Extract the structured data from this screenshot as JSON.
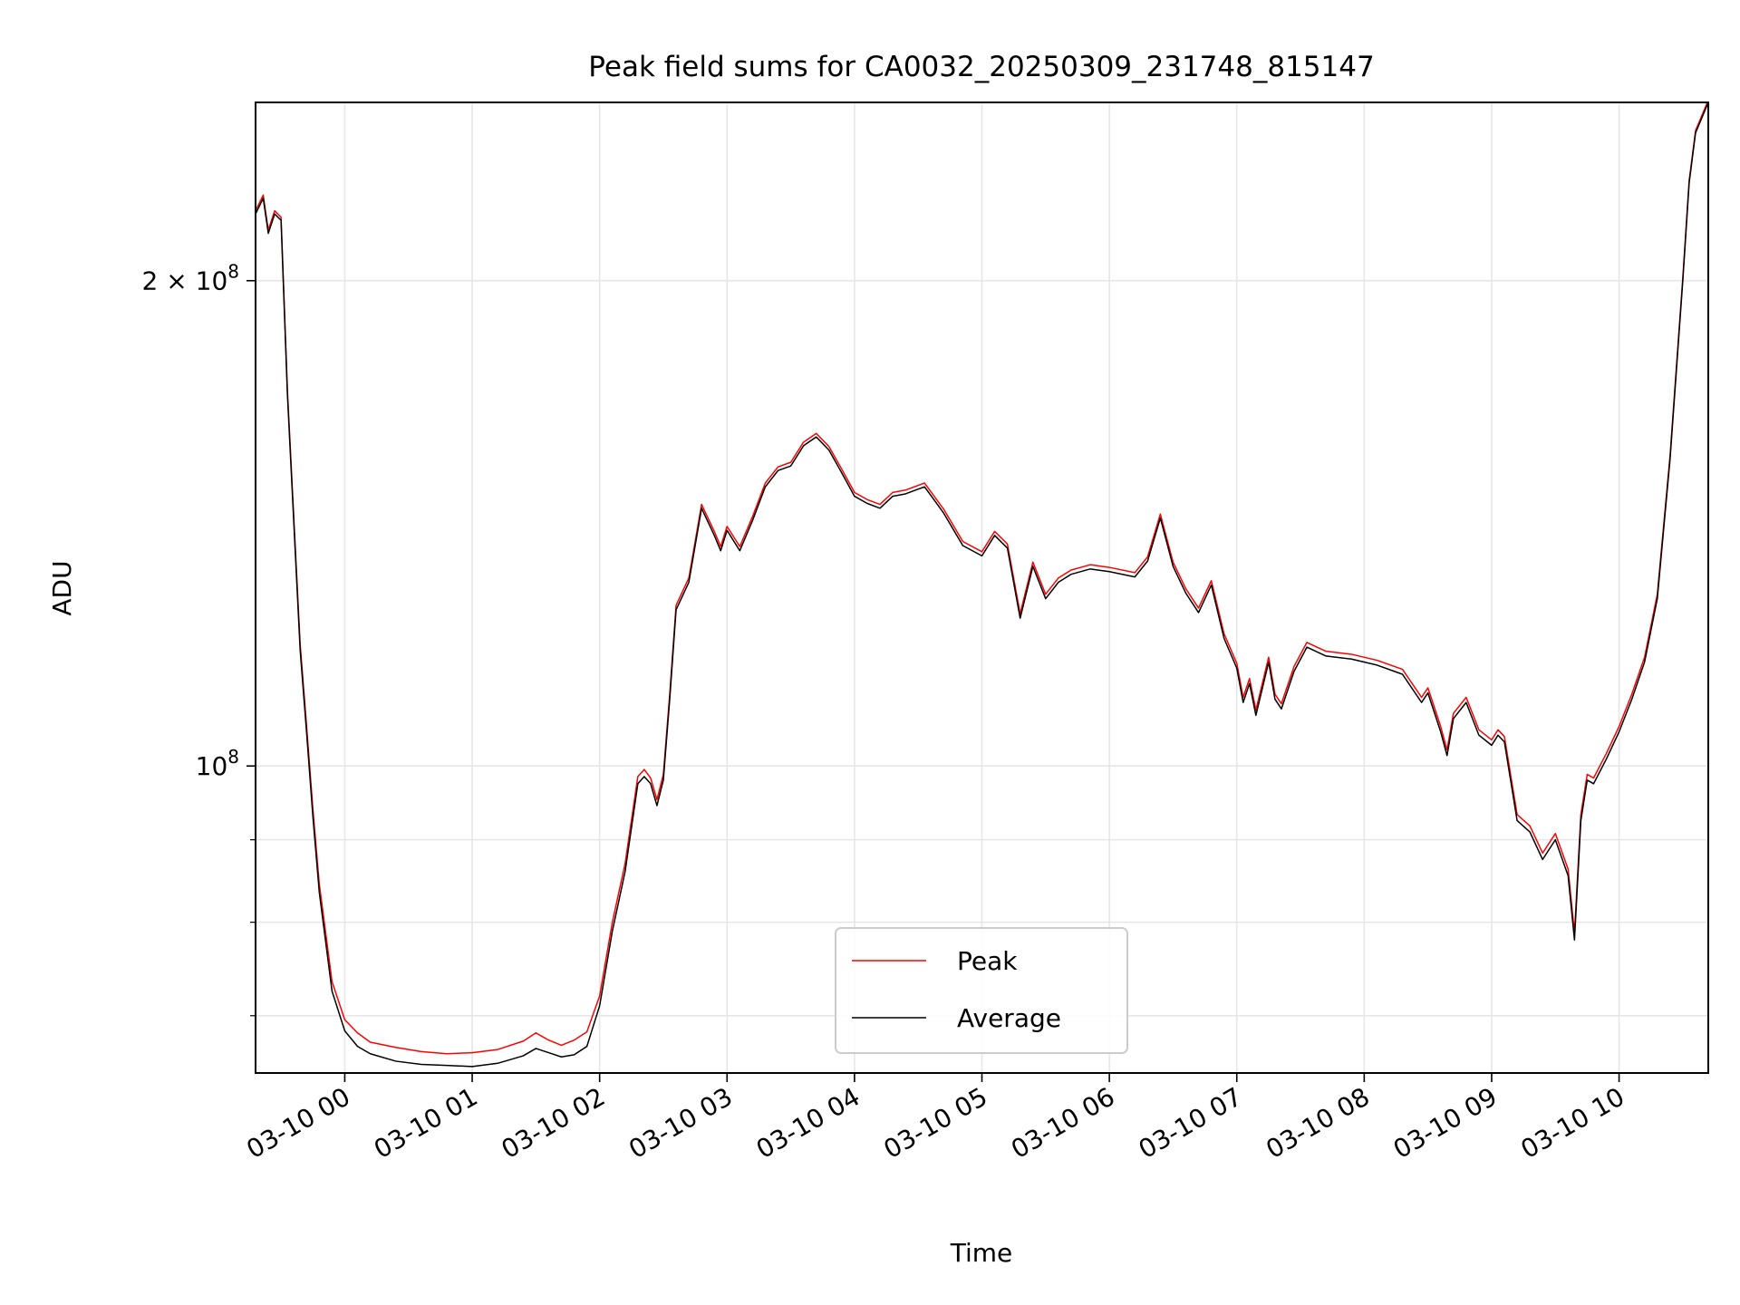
{
  "chart_data": {
    "type": "line",
    "title": "Peak field sums for CA0032_20250309_231748_815147",
    "xlabel": "Time",
    "ylabel": "ADU",
    "y_scale": "log",
    "grid": true,
    "legend_position": "lower center",
    "x_unit": "hours after 2025-03-10 00:00",
    "xlim": [
      -0.7,
      10.7
    ],
    "ylim": [
      64500000,
      258000000
    ],
    "x_ticks": [
      {
        "value": 0,
        "label": "03-10 00"
      },
      {
        "value": 1,
        "label": "03-10 01"
      },
      {
        "value": 2,
        "label": "03-10 02"
      },
      {
        "value": 3,
        "label": "03-10 03"
      },
      {
        "value": 4,
        "label": "03-10 04"
      },
      {
        "value": 5,
        "label": "03-10 05"
      },
      {
        "value": 6,
        "label": "03-10 06"
      },
      {
        "value": 7,
        "label": "03-10 07"
      },
      {
        "value": 8,
        "label": "03-10 08"
      },
      {
        "value": 9,
        "label": "03-10 09"
      },
      {
        "value": 10,
        "label": "03-10 10"
      }
    ],
    "y_ticks": [
      {
        "value": 200000000,
        "label": "2 × 10⁸",
        "mantissa": "2 × 10",
        "exp": "8"
      },
      {
        "value": 100000000,
        "label": "10⁸",
        "mantissa": "10",
        "exp": "8"
      }
    ],
    "y_minor_ticks": [
      70000000,
      80000000,
      90000000
    ],
    "series": [
      {
        "name": "Average",
        "color": "#000000",
        "points": [
          [
            -0.7,
            220000000
          ],
          [
            -0.64,
            225000000
          ],
          [
            -0.6,
            214000000
          ],
          [
            -0.55,
            220000000
          ],
          [
            -0.5,
            218000000
          ],
          [
            -0.45,
            170000000
          ],
          [
            -0.35,
            118000000
          ],
          [
            -0.3,
            105000000
          ],
          [
            -0.25,
            93000000
          ],
          [
            -0.2,
            83500000
          ],
          [
            -0.1,
            72500000
          ],
          [
            0.0,
            68500000
          ],
          [
            0.1,
            67000000
          ],
          [
            0.2,
            66300000
          ],
          [
            0.4,
            65600000
          ],
          [
            0.6,
            65300000
          ],
          [
            0.8,
            65200000
          ],
          [
            1.0,
            65100000
          ],
          [
            1.2,
            65400000
          ],
          [
            1.4,
            66100000
          ],
          [
            1.5,
            66800000
          ],
          [
            1.6,
            66400000
          ],
          [
            1.7,
            66000000
          ],
          [
            1.8,
            66200000
          ],
          [
            1.9,
            67000000
          ],
          [
            2.0,
            71000000
          ],
          [
            2.1,
            79000000
          ],
          [
            2.2,
            86000000
          ],
          [
            2.3,
            97500000
          ],
          [
            2.35,
            98500000
          ],
          [
            2.4,
            97500000
          ],
          [
            2.45,
            94500000
          ],
          [
            2.5,
            98000000
          ],
          [
            2.55,
            110000000
          ],
          [
            2.6,
            125000000
          ],
          [
            2.7,
            130000000
          ],
          [
            2.8,
            144500000
          ],
          [
            2.9,
            139000000
          ],
          [
            2.95,
            136000000
          ],
          [
            3.0,
            140000000
          ],
          [
            3.1,
            136000000
          ],
          [
            3.2,
            142000000
          ],
          [
            3.3,
            149000000
          ],
          [
            3.4,
            152500000
          ],
          [
            3.5,
            153500000
          ],
          [
            3.6,
            158000000
          ],
          [
            3.7,
            160000000
          ],
          [
            3.8,
            157000000
          ],
          [
            3.9,
            152000000
          ],
          [
            4.0,
            147000000
          ],
          [
            4.1,
            145500000
          ],
          [
            4.2,
            144500000
          ],
          [
            4.3,
            147000000
          ],
          [
            4.4,
            147500000
          ],
          [
            4.55,
            149000000
          ],
          [
            4.7,
            143500000
          ],
          [
            4.85,
            137000000
          ],
          [
            5.0,
            135000000
          ],
          [
            5.1,
            139000000
          ],
          [
            5.2,
            136500000
          ],
          [
            5.3,
            123500000
          ],
          [
            5.4,
            133000000
          ],
          [
            5.5,
            127000000
          ],
          [
            5.6,
            130000000
          ],
          [
            5.7,
            131500000
          ],
          [
            5.85,
            132500000
          ],
          [
            6.0,
            132000000
          ],
          [
            6.2,
            131000000
          ],
          [
            6.3,
            134000000
          ],
          [
            6.4,
            142500000
          ],
          [
            6.5,
            133000000
          ],
          [
            6.6,
            128000000
          ],
          [
            6.7,
            124500000
          ],
          [
            6.8,
            129500000
          ],
          [
            6.9,
            120000000
          ],
          [
            7.0,
            115000000
          ],
          [
            7.05,
            109500000
          ],
          [
            7.1,
            112500000
          ],
          [
            7.15,
            107500000
          ],
          [
            7.25,
            116000000
          ],
          [
            7.3,
            110000000
          ],
          [
            7.35,
            108500000
          ],
          [
            7.45,
            114500000
          ],
          [
            7.55,
            118500000
          ],
          [
            7.7,
            117000000
          ],
          [
            7.9,
            116500000
          ],
          [
            8.1,
            115500000
          ],
          [
            8.3,
            114000000
          ],
          [
            8.45,
            109500000
          ],
          [
            8.5,
            111000000
          ],
          [
            8.6,
            105000000
          ],
          [
            8.65,
            101500000
          ],
          [
            8.7,
            107000000
          ],
          [
            8.8,
            109500000
          ],
          [
            8.9,
            104500000
          ],
          [
            9.0,
            103000000
          ],
          [
            9.05,
            104500000
          ],
          [
            9.1,
            103500000
          ],
          [
            9.2,
            92500000
          ],
          [
            9.3,
            91000000
          ],
          [
            9.4,
            87500000
          ],
          [
            9.5,
            90000000
          ],
          [
            9.6,
            85500000
          ],
          [
            9.65,
            78000000
          ],
          [
            9.7,
            92500000
          ],
          [
            9.75,
            98000000
          ],
          [
            9.8,
            97500000
          ],
          [
            9.9,
            101000000
          ],
          [
            10.0,
            105000000
          ],
          [
            10.1,
            110000000
          ],
          [
            10.2,
            116000000
          ],
          [
            10.3,
            127000000
          ],
          [
            10.4,
            155000000
          ],
          [
            10.5,
            200000000
          ],
          [
            10.55,
            230000000
          ],
          [
            10.6,
            247000000
          ],
          [
            10.7,
            258000000
          ]
        ]
      },
      {
        "name": "Peak",
        "color": "#ff0000",
        "points": [
          [
            -0.7,
            221000000
          ],
          [
            -0.64,
            226000000
          ],
          [
            -0.6,
            215000000
          ],
          [
            -0.55,
            221000000
          ],
          [
            -0.5,
            219000000
          ],
          [
            -0.45,
            171000000
          ],
          [
            -0.35,
            119000000
          ],
          [
            -0.3,
            106000000
          ],
          [
            -0.25,
            94000000
          ],
          [
            -0.2,
            84500000
          ],
          [
            -0.1,
            73500000
          ],
          [
            0.0,
            69600000
          ],
          [
            0.1,
            68300000
          ],
          [
            0.2,
            67400000
          ],
          [
            0.4,
            66900000
          ],
          [
            0.6,
            66500000
          ],
          [
            0.8,
            66300000
          ],
          [
            1.0,
            66400000
          ],
          [
            1.2,
            66700000
          ],
          [
            1.4,
            67500000
          ],
          [
            1.5,
            68300000
          ],
          [
            1.6,
            67600000
          ],
          [
            1.7,
            67100000
          ],
          [
            1.8,
            67600000
          ],
          [
            1.9,
            68400000
          ],
          [
            2.0,
            72000000
          ],
          [
            2.1,
            80000000
          ],
          [
            2.2,
            87000000
          ],
          [
            2.3,
            98500000
          ],
          [
            2.35,
            99500000
          ],
          [
            2.4,
            98300000
          ],
          [
            2.45,
            95300000
          ],
          [
            2.5,
            98800000
          ],
          [
            2.55,
            110800000
          ],
          [
            2.6,
            125800000
          ],
          [
            2.7,
            130800000
          ],
          [
            2.8,
            145300000
          ],
          [
            2.9,
            139800000
          ],
          [
            2.95,
            136800000
          ],
          [
            3.0,
            140800000
          ],
          [
            3.1,
            136800000
          ],
          [
            3.2,
            142800000
          ],
          [
            3.3,
            149800000
          ],
          [
            3.4,
            153300000
          ],
          [
            3.5,
            154300000
          ],
          [
            3.6,
            158800000
          ],
          [
            3.7,
            160800000
          ],
          [
            3.8,
            157800000
          ],
          [
            3.9,
            152800000
          ],
          [
            4.0,
            147800000
          ],
          [
            4.1,
            146300000
          ],
          [
            4.2,
            145300000
          ],
          [
            4.3,
            147800000
          ],
          [
            4.4,
            148300000
          ],
          [
            4.55,
            149800000
          ],
          [
            4.7,
            144300000
          ],
          [
            4.85,
            137800000
          ],
          [
            5.0,
            135800000
          ],
          [
            5.1,
            139800000
          ],
          [
            5.2,
            137300000
          ],
          [
            5.3,
            124300000
          ],
          [
            5.4,
            133800000
          ],
          [
            5.5,
            127800000
          ],
          [
            5.6,
            130800000
          ],
          [
            5.7,
            132300000
          ],
          [
            5.85,
            133300000
          ],
          [
            6.0,
            132800000
          ],
          [
            6.2,
            131800000
          ],
          [
            6.3,
            134800000
          ],
          [
            6.4,
            143300000
          ],
          [
            6.5,
            133800000
          ],
          [
            6.6,
            128800000
          ],
          [
            6.7,
            125300000
          ],
          [
            6.8,
            130300000
          ],
          [
            6.9,
            120800000
          ],
          [
            7.0,
            115800000
          ],
          [
            7.05,
            110300000
          ],
          [
            7.1,
            113300000
          ],
          [
            7.15,
            108300000
          ],
          [
            7.25,
            116800000
          ],
          [
            7.3,
            110800000
          ],
          [
            7.35,
            109300000
          ],
          [
            7.45,
            115300000
          ],
          [
            7.55,
            119300000
          ],
          [
            7.7,
            117800000
          ],
          [
            7.9,
            117300000
          ],
          [
            8.1,
            116300000
          ],
          [
            8.3,
            114800000
          ],
          [
            8.45,
            110300000
          ],
          [
            8.5,
            111800000
          ],
          [
            8.6,
            105800000
          ],
          [
            8.65,
            102300000
          ],
          [
            8.7,
            107800000
          ],
          [
            8.8,
            110300000
          ],
          [
            8.9,
            105300000
          ],
          [
            9.0,
            103800000
          ],
          [
            9.05,
            105300000
          ],
          [
            9.1,
            104300000
          ],
          [
            9.2,
            93300000
          ],
          [
            9.3,
            91800000
          ],
          [
            9.4,
            88300000
          ],
          [
            9.5,
            90800000
          ],
          [
            9.6,
            86300000
          ],
          [
            9.65,
            78800000
          ],
          [
            9.7,
            93300000
          ],
          [
            9.75,
            98800000
          ],
          [
            9.8,
            98300000
          ],
          [
            9.9,
            101800000
          ],
          [
            10.0,
            105800000
          ],
          [
            10.1,
            110800000
          ],
          [
            10.2,
            116800000
          ],
          [
            10.3,
            127800000
          ],
          [
            10.4,
            155800000
          ],
          [
            10.5,
            200800000
          ],
          [
            10.55,
            230800000
          ],
          [
            10.6,
            247800000
          ],
          [
            10.7,
            258800000
          ]
        ]
      }
    ]
  }
}
